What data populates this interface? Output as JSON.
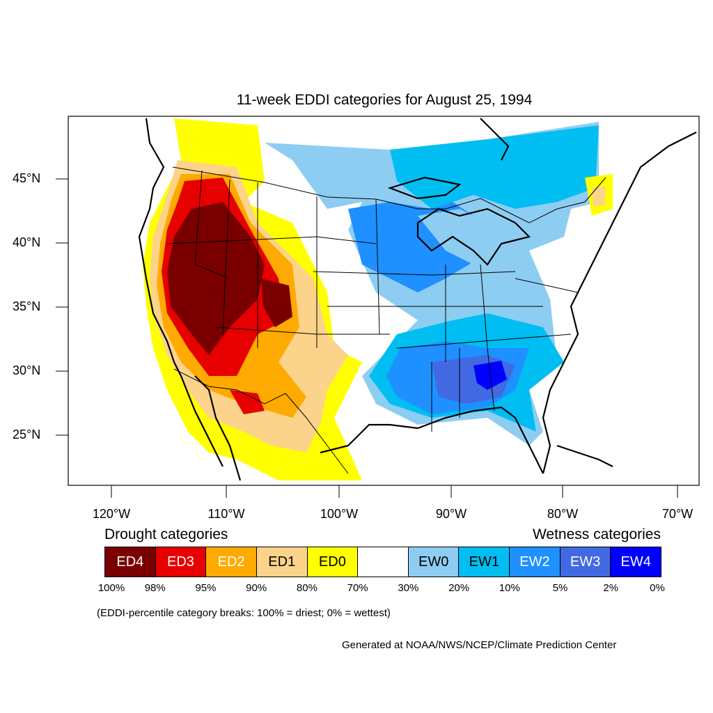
{
  "title": "11-week EDDI categories for August 25, 1994",
  "lat_labels": [
    "45°N",
    "40°N",
    "35°N",
    "30°N",
    "25°N"
  ],
  "lon_labels": [
    "120°W",
    "110°W",
    "100°W",
    "90°W",
    "80°W",
    "70°W"
  ],
  "legend": {
    "drought_title": "Drought categories",
    "wetness_title": "Wetness categories",
    "categories": [
      {
        "label": "ED4",
        "color": "#7a0000",
        "text_color": "#ffffff"
      },
      {
        "label": "ED3",
        "color": "#e60000",
        "text_color": "#ffffff"
      },
      {
        "label": "ED2",
        "color": "#ffaa00",
        "text_color": "#ffffff"
      },
      {
        "label": "ED1",
        "color": "#fcd38a",
        "text_color": "#000000"
      },
      {
        "label": "ED0",
        "color": "#ffff00",
        "text_color": "#000000"
      },
      {
        "label": "",
        "color": "#ffffff",
        "text_color": "#000000"
      },
      {
        "label": "EW0",
        "color": "#8ecdf2",
        "text_color": "#000000"
      },
      {
        "label": "EW1",
        "color": "#00bef2",
        "text_color": "#000000"
      },
      {
        "label": "EW2",
        "color": "#1e90ff",
        "text_color": "#ffffff"
      },
      {
        "label": "EW3",
        "color": "#4169e1",
        "text_color": "#ffffff"
      },
      {
        "label": "EW4",
        "color": "#0000ff",
        "text_color": "#ffffff"
      }
    ],
    "percentiles": [
      "100%",
      "98%",
      "95%",
      "90%",
      "80%",
      "70%",
      "30%",
      "20%",
      "10%",
      "5%",
      "2%",
      "0%"
    ]
  },
  "note": "(EDDI-percentile category breaks: 100% = driest; 0% = wettest)",
  "credit": "Generated at NOAA/NWS/NCEP/Climate Prediction Center"
}
